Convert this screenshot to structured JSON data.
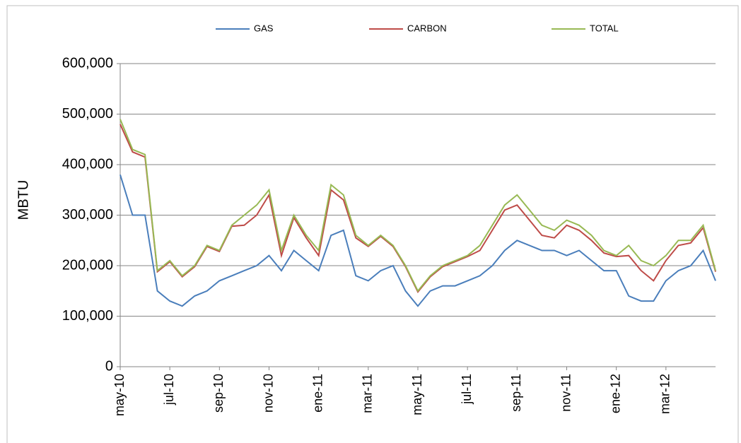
{
  "chart_data": {
    "type": "line",
    "y_label": "MBTU",
    "categories": [
      "may-10",
      null,
      null,
      null,
      "jul-10",
      null,
      null,
      null,
      "sep-10",
      null,
      null,
      null,
      "nov-10",
      null,
      null,
      null,
      "ene-11",
      null,
      null,
      null,
      "mar-11",
      null,
      null,
      null,
      "may-11",
      null,
      null,
      null,
      "jul-11",
      null,
      null,
      null,
      "sep-11",
      null,
      null,
      null,
      "nov-11",
      null,
      null,
      null,
      "ene-12",
      null,
      null,
      null,
      "mar-12",
      null,
      null,
      null,
      null
    ],
    "series": [
      {
        "name": "GAS",
        "color": "#4a7ebb",
        "values": [
          380000,
          300000,
          300000,
          150000,
          130000,
          120000,
          140000,
          150000,
          170000,
          180000,
          190000,
          200000,
          220000,
          190000,
          230000,
          210000,
          190000,
          260000,
          270000,
          180000,
          170000,
          190000,
          200000,
          150000,
          120000,
          150000,
          160000,
          160000,
          170000,
          180000,
          200000,
          230000,
          250000,
          240000,
          230000,
          230000,
          220000,
          230000,
          210000,
          190000,
          190000,
          140000,
          130000,
          130000,
          170000,
          190000,
          200000,
          230000,
          170000
        ]
      },
      {
        "name": "CARBON",
        "color": "#be4b48",
        "values": [
          480000,
          425000,
          415000,
          188000,
          208000,
          178000,
          198000,
          238000,
          228000,
          278000,
          280000,
          300000,
          340000,
          220000,
          295000,
          255000,
          220000,
          350000,
          330000,
          255000,
          238000,
          258000,
          238000,
          198000,
          148000,
          178000,
          198000,
          208000,
          218000,
          230000,
          270000,
          310000,
          320000,
          290000,
          260000,
          255000,
          280000,
          270000,
          250000,
          225000,
          218000,
          220000,
          190000,
          170000,
          210000,
          240000,
          245000,
          275000,
          188000
        ]
      },
      {
        "name": "TOTAL",
        "color": "#98b954",
        "values": [
          490000,
          430000,
          420000,
          190000,
          210000,
          180000,
          200000,
          240000,
          230000,
          280000,
          300000,
          320000,
          350000,
          230000,
          300000,
          260000,
          230000,
          360000,
          340000,
          260000,
          240000,
          260000,
          240000,
          200000,
          150000,
          180000,
          200000,
          210000,
          220000,
          240000,
          280000,
          320000,
          340000,
          310000,
          280000,
          270000,
          290000,
          280000,
          260000,
          230000,
          220000,
          240000,
          210000,
          200000,
          220000,
          250000,
          250000,
          280000,
          190000
        ]
      }
    ],
    "ylim": [
      0,
      600000
    ],
    "yticks": [
      0,
      {
        "value": 100000,
        "label": "100,000"
      },
      {
        "value": 200000,
        "label": "200,000"
      },
      {
        "value": 300000,
        "label": "300,000"
      },
      {
        "value": 400000,
        "label": "400,000"
      },
      {
        "value": 500000,
        "label": "500,000"
      },
      {
        "value": 600000,
        "label": "600,000"
      }
    ],
    "grid": true,
    "legend": "top"
  }
}
